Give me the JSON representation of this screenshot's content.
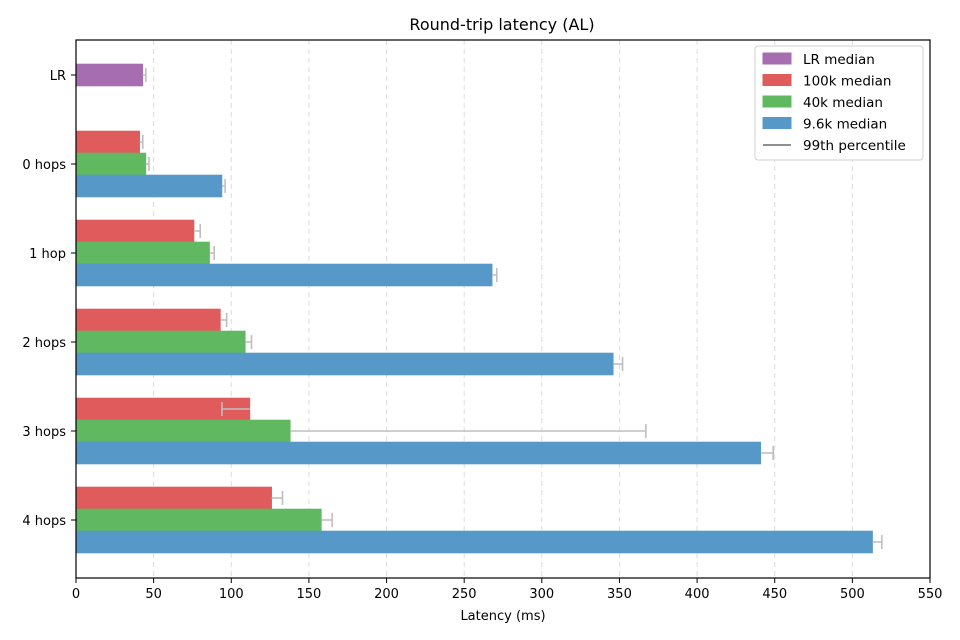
{
  "chart_data": {
    "type": "bar",
    "orientation": "horizontal",
    "title": "Round-trip latency (AL)",
    "xlabel": "Latency (ms)",
    "ylabel": "",
    "xlim": [
      0,
      550
    ],
    "xticks": [
      0,
      50,
      100,
      150,
      200,
      250,
      300,
      350,
      400,
      450,
      500,
      550
    ],
    "grid": "x dashed",
    "legend_position": "upper right",
    "categories": [
      "LR",
      "0 hops",
      "1 hop",
      "2 hops",
      "3 hops",
      "4 hops"
    ],
    "series": [
      {
        "name": "LR median",
        "color": "#a66eb0",
        "values": [
          43,
          null,
          null,
          null,
          null,
          null
        ],
        "p99": [
          45,
          null,
          null,
          null,
          null,
          null
        ]
      },
      {
        "name": "100k median",
        "color": "#e05c5c",
        "values": [
          null,
          41,
          76,
          93,
          112,
          126
        ],
        "p99": [
          null,
          43,
          80,
          97,
          94,
          133
        ]
      },
      {
        "name": "40k median",
        "color": "#60b860",
        "values": [
          null,
          45,
          86,
          109,
          138,
          158
        ],
        "p99": [
          null,
          47,
          89,
          113,
          367,
          165
        ]
      },
      {
        "name": "9.6k median",
        "color": "#5698c8",
        "values": [
          null,
          94,
          268,
          346,
          441,
          513
        ],
        "p99": [
          null,
          96,
          271,
          352,
          449,
          519
        ]
      }
    ],
    "legend": [
      "LR median",
      "100k median",
      "40k median",
      "9.6k median",
      "99th percentile"
    ],
    "errorbar_color": "#bfbfbf"
  }
}
